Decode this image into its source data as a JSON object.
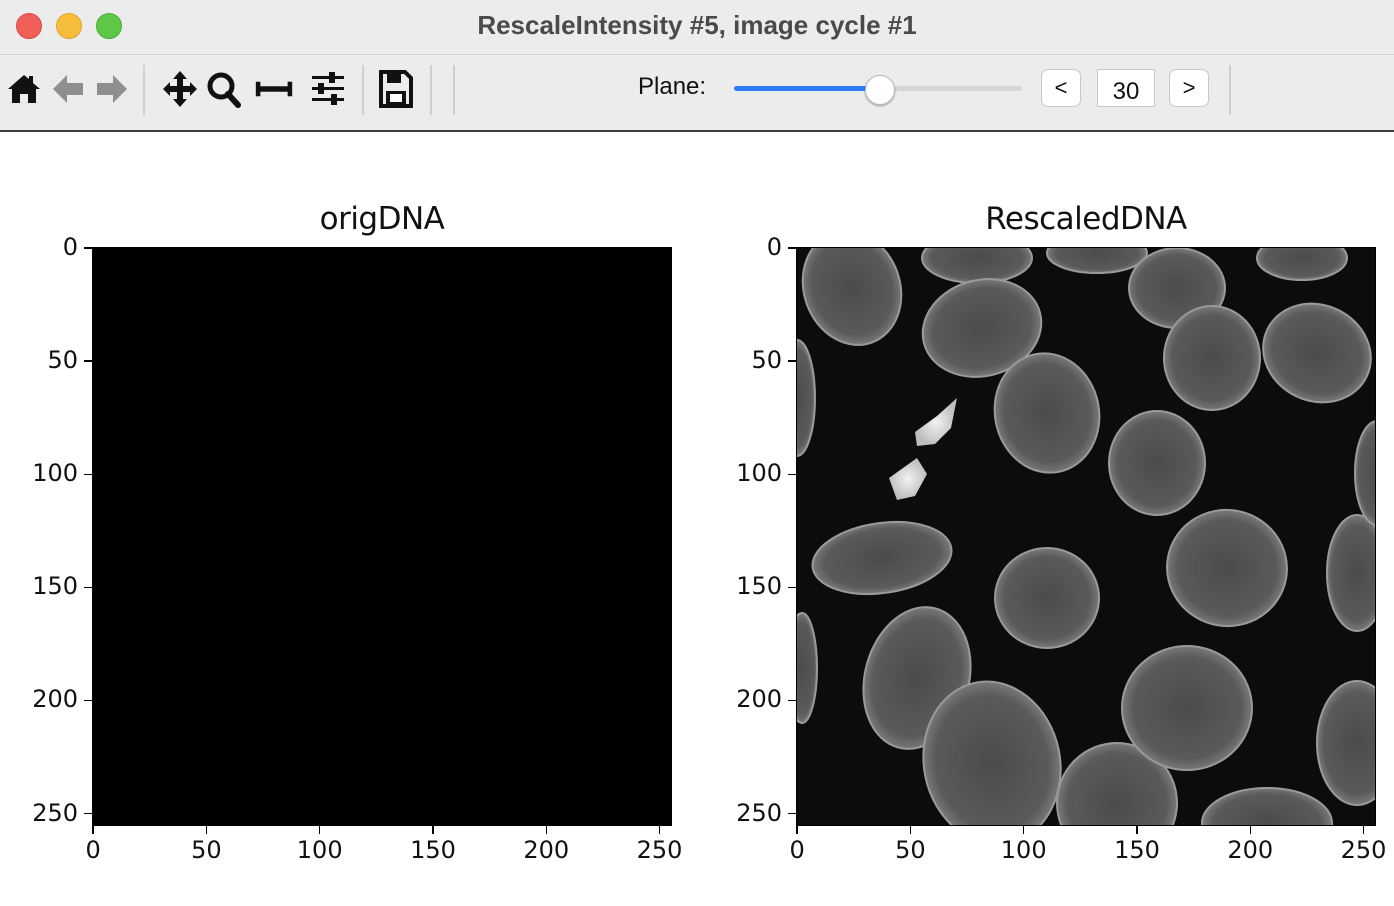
{
  "window": {
    "title": "RescaleIntensity #5, image cycle #1"
  },
  "toolbar": {
    "tools": [
      "home-icon",
      "back-arrow-icon",
      "forward-arrow-icon",
      "pan-icon",
      "zoom-icon",
      "subplots-adjust-icon",
      "configure-icon",
      "save-icon"
    ],
    "plane_label": "Plane:",
    "plane_value": "30",
    "plane_slider_fraction": 0.505,
    "prev_label": "<",
    "next_label": ">",
    "colors": {
      "accent": "#2f7df6"
    }
  },
  "figure": {
    "axes": [
      {
        "title": "origDNA",
        "image": "all-black",
        "yticks": [
          "0",
          "50",
          "100",
          "150",
          "200",
          "250"
        ],
        "xticks": [
          "0",
          "50",
          "100",
          "150",
          "200",
          "250"
        ]
      },
      {
        "title": "RescaledDNA",
        "image": "grayscale nuclei",
        "yticks": [
          "0",
          "50",
          "100",
          "150",
          "200",
          "250"
        ],
        "xticks": [
          "0",
          "50",
          "100",
          "150",
          "200",
          "250"
        ]
      }
    ]
  }
}
